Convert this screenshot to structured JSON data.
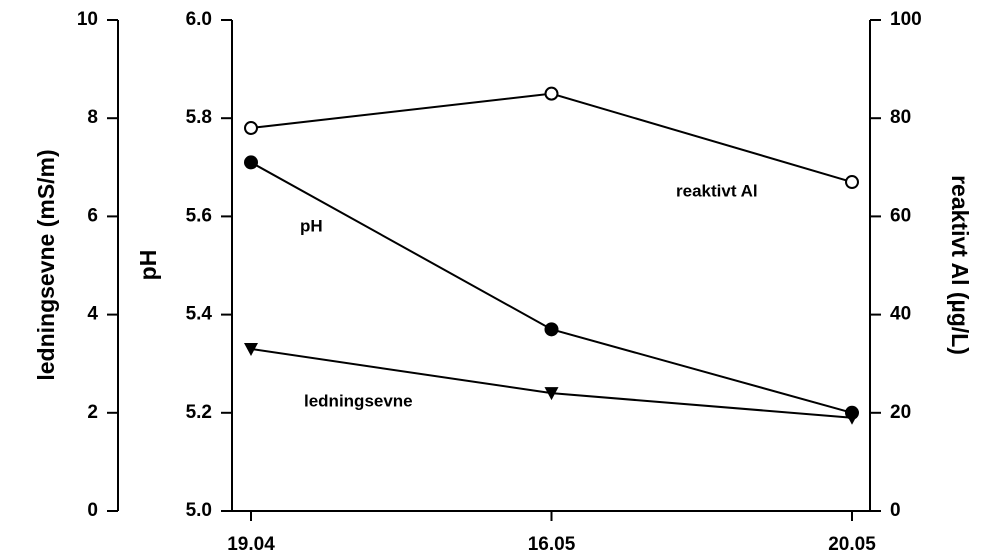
{
  "chart_data": {
    "type": "line",
    "categories": [
      "19.04",
      "16.05",
      "20.05"
    ],
    "ylabel": "pH",
    "ylim": [
      5,
      6
    ],
    "yticks": [
      {
        "value": 5,
        "label": "5.0"
      },
      5.2,
      5.4,
      5.6,
      5.8,
      {
        "value": 6,
        "label": "6.0"
      }
    ],
    "y2label": "reaktivt Al (µg/L)",
    "y2lim": [
      0,
      100
    ],
    "y2ticks": [
      0,
      20,
      40,
      60,
      80,
      100
    ],
    "y3label": "ledningsevne (mS/m)",
    "y3lim": [
      0,
      10
    ],
    "y3ticks": [
      0,
      2,
      4,
      6,
      8,
      10
    ],
    "series": [
      {
        "name": "pH",
        "color": "#000000",
        "marker": "filled-circle",
        "axis": "y",
        "values": [
          5.71,
          5.37,
          5.2
        ]
      },
      {
        "name": "reaktivt Al",
        "color": "#000000",
        "marker": "open-circle",
        "axis": "y2",
        "values": [
          78,
          85,
          67
        ]
      },
      {
        "name": "ledningsevne",
        "color": "#000000",
        "marker": "triangle-down",
        "axis": "y3",
        "values": [
          3.3,
          2.4,
          1.9
        ]
      }
    ]
  }
}
